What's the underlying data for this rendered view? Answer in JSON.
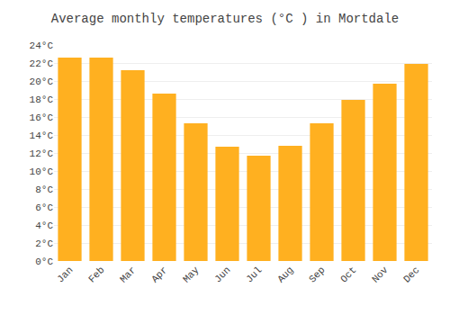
{
  "chart_data": {
    "type": "bar",
    "title": "Average monthly temperatures (°C ) in Mortdale",
    "categories": [
      "Jan",
      "Feb",
      "Mar",
      "Apr",
      "May",
      "Jun",
      "Jul",
      "Aug",
      "Sep",
      "Oct",
      "Nov",
      "Dec"
    ],
    "values": [
      22.6,
      22.6,
      21.2,
      18.6,
      15.3,
      12.7,
      11.7,
      12.8,
      15.3,
      17.9,
      19.7,
      21.9
    ],
    "color": "#FFB020",
    "ylim": [
      0,
      24
    ],
    "yticks": [
      {
        "value": 0,
        "label": "0°C"
      },
      {
        "value": 2,
        "label": "2°C"
      },
      {
        "value": 4,
        "label": "4°C"
      },
      {
        "value": 6,
        "label": "6°C"
      },
      {
        "value": 8,
        "label": "8°C"
      },
      {
        "value": 10,
        "label": "10°C"
      },
      {
        "value": 12,
        "label": "12°C"
      },
      {
        "value": 14,
        "label": "14°C"
      },
      {
        "value": 16,
        "label": "16°C"
      },
      {
        "value": 18,
        "label": "18°C"
      },
      {
        "value": 20,
        "label": "20°C"
      },
      {
        "value": 22,
        "label": "22°C"
      },
      {
        "value": 24,
        "label": "24°C"
      }
    ],
    "grid": true
  }
}
